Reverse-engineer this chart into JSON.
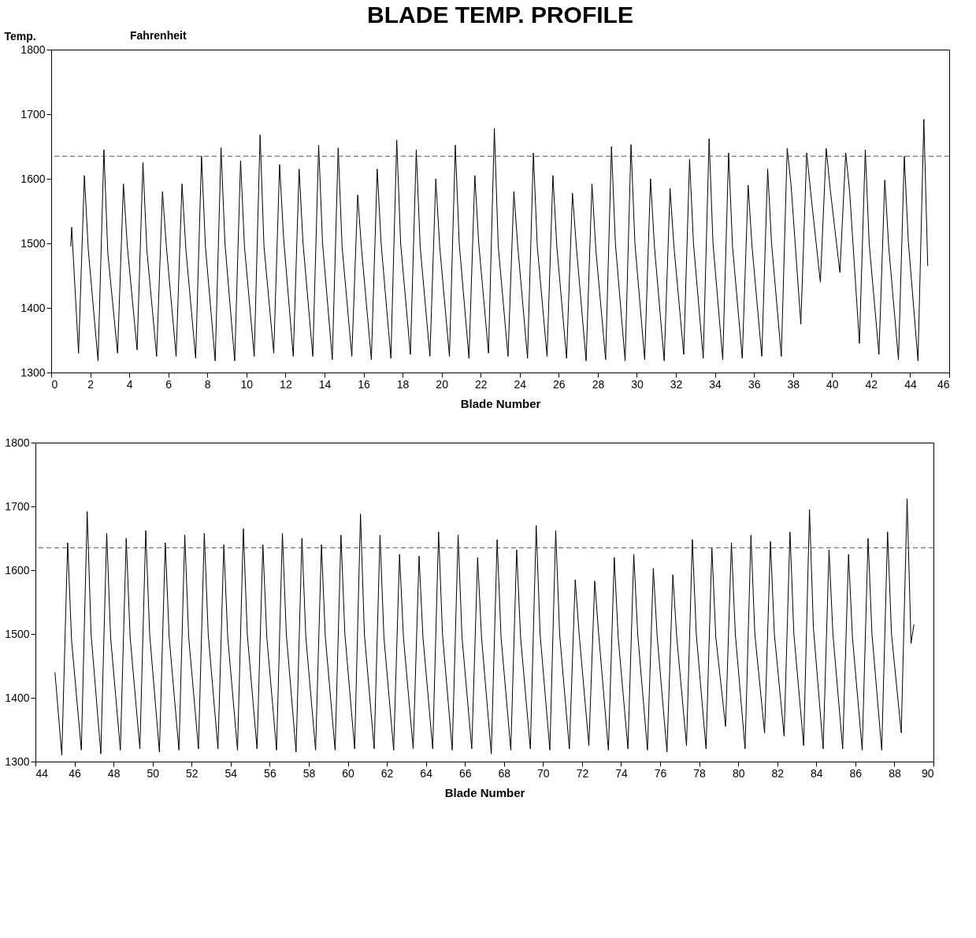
{
  "chart_data": [
    {
      "type": "line",
      "title": "BLADE TEMP. PROFILE",
      "ylabel": "Temp.",
      "xlabel": "Blade Number",
      "annotations": [
        "Fahrenheit"
      ],
      "x": [
        1,
        1.05,
        1.4,
        1.7,
        1.9,
        2.4,
        2.7,
        2.9,
        3.4,
        3.7,
        3.9,
        4.4,
        4.7,
        4.9,
        5.4,
        5.7,
        5.9,
        6.4,
        6.7,
        6.9,
        7.4,
        7.7,
        7.9,
        8.4,
        8.7,
        8.9,
        9.4,
        9.7,
        9.9,
        10.4,
        10.7,
        10.9,
        11.4,
        11.7,
        11.9,
        12.4,
        12.7,
        12.9,
        13.4,
        13.7,
        13.9,
        14.4,
        14.7,
        14.9,
        15.4,
        15.7,
        15.9,
        16.4,
        16.7,
        16.9,
        17.4,
        17.7,
        17.9,
        18.4,
        18.7,
        18.9,
        19.4,
        19.7,
        19.9,
        20.4,
        20.7,
        20.9,
        21.4,
        21.7,
        21.9,
        22.4,
        22.7,
        22.9,
        23.4,
        23.7,
        23.9,
        24.4,
        24.7,
        24.9,
        25.4,
        25.7,
        25.9,
        26.4,
        26.7,
        26.9,
        27.4,
        27.7,
        27.9,
        28.4,
        28.7,
        28.9,
        29.4,
        29.7,
        29.9,
        30.4,
        30.7,
        30.9,
        31.4,
        31.7,
        31.9,
        32.4,
        32.7,
        32.9,
        33.4,
        33.7,
        33.9,
        34.4,
        34.7,
        34.9,
        35.4,
        35.7,
        35.9,
        36.4,
        36.7,
        36.9,
        37.4,
        37.7,
        37.9,
        38.4,
        38.7,
        38.9,
        39.4,
        39.7,
        39.9,
        40.4,
        40.7,
        40.9,
        41.4,
        41.7,
        41.9,
        42.4,
        42.7,
        42.9,
        43.4,
        43.7,
        43.9,
        44.4,
        44.7,
        44.9
      ],
      "series": [
        {
          "color": "#000000",
          "values": [
            1495,
            1525,
            1330,
            1605,
            1490,
            1318,
            1645,
            1485,
            1330,
            1592,
            1495,
            1335,
            1625,
            1490,
            1325,
            1580,
            1495,
            1325,
            1592,
            1490,
            1322,
            1635,
            1495,
            1318,
            1648,
            1500,
            1318,
            1628,
            1495,
            1325,
            1668,
            1495,
            1330,
            1622,
            1510,
            1325,
            1615,
            1500,
            1325,
            1652,
            1500,
            1320,
            1648,
            1495,
            1325,
            1575,
            1490,
            1320,
            1615,
            1500,
            1322,
            1660,
            1500,
            1328,
            1645,
            1495,
            1325,
            1600,
            1495,
            1325,
            1652,
            1500,
            1322,
            1605,
            1500,
            1330,
            1678,
            1495,
            1325,
            1580,
            1495,
            1322,
            1640,
            1495,
            1325,
            1605,
            1495,
            1322,
            1578,
            1495,
            1318,
            1592,
            1490,
            1320,
            1650,
            1500,
            1318,
            1653,
            1500,
            1320,
            1600,
            1495,
            1318,
            1585,
            1495,
            1328,
            1630,
            1500,
            1322,
            1662,
            1500,
            1320,
            1640,
            1495,
            1322,
            1590,
            1495,
            1325,
            1615,
            1500,
            1325,
            1647,
            1590,
            1375,
            1640,
            1580,
            1440,
            1647,
            1585,
            1455,
            1640,
            1580,
            1345,
            1645,
            1500,
            1328,
            1598,
            1495,
            1320,
            1635,
            1505,
            1318,
            1692,
            1465
          ]
        }
      ],
      "xlim": [
        0,
        46
      ],
      "xticks": [
        0,
        2,
        4,
        6,
        8,
        10,
        12,
        14,
        16,
        18,
        20,
        22,
        24,
        26,
        28,
        30,
        32,
        34,
        36,
        38,
        40,
        42,
        44,
        46
      ],
      "ylim": [
        1300,
        1800
      ],
      "yticks": [
        1300,
        1400,
        1500,
        1600,
        1700,
        1800
      ],
      "ref_lines": [
        {
          "axis": "y",
          "value": 1635,
          "color": "#555555",
          "line_style": "dashed"
        }
      ]
    },
    {
      "type": "line",
      "xlabel": "Blade Number",
      "x": [
        45,
        45.35,
        45.65,
        45.85,
        46.35,
        46.65,
        46.85,
        47.35,
        47.65,
        47.85,
        48.35,
        48.65,
        48.85,
        49.35,
        49.65,
        49.85,
        50.35,
        50.65,
        50.85,
        51.35,
        51.65,
        51.85,
        52.35,
        52.65,
        52.85,
        53.35,
        53.65,
        53.85,
        54.35,
        54.65,
        54.85,
        55.35,
        55.65,
        55.85,
        56.35,
        56.65,
        56.85,
        57.35,
        57.65,
        57.85,
        58.35,
        58.65,
        58.85,
        59.35,
        59.65,
        59.85,
        60.35,
        60.65,
        60.85,
        61.35,
        61.65,
        61.85,
        62.35,
        62.65,
        62.85,
        63.35,
        63.65,
        63.85,
        64.35,
        64.65,
        64.85,
        65.35,
        65.65,
        65.85,
        66.35,
        66.65,
        66.85,
        67.35,
        67.65,
        67.85,
        68.35,
        68.65,
        68.85,
        69.35,
        69.65,
        69.85,
        70.35,
        70.65,
        70.85,
        71.35,
        71.65,
        71.85,
        72.35,
        72.65,
        72.85,
        73.35,
        73.65,
        73.85,
        74.35,
        74.65,
        74.85,
        75.35,
        75.65,
        75.85,
        76.35,
        76.65,
        76.85,
        77.35,
        77.65,
        77.85,
        78.35,
        78.65,
        78.85,
        79.35,
        79.65,
        79.85,
        80.35,
        80.65,
        80.85,
        81.35,
        81.65,
        81.85,
        82.35,
        82.65,
        82.85,
        83.35,
        83.65,
        83.85,
        84.35,
        84.65,
        84.85,
        85.35,
        85.65,
        85.85,
        86.35,
        86.65,
        86.85,
        87.35,
        87.65,
        87.85,
        88.35,
        88.65,
        88.85,
        89
      ],
      "series": [
        {
          "color": "#000000",
          "values": [
            1440,
            1310,
            1643,
            1490,
            1318,
            1692,
            1500,
            1312,
            1658,
            1495,
            1318,
            1650,
            1495,
            1320,
            1662,
            1500,
            1315,
            1643,
            1495,
            1318,
            1655,
            1495,
            1320,
            1658,
            1500,
            1320,
            1640,
            1495,
            1318,
            1665,
            1500,
            1320,
            1640,
            1495,
            1318,
            1658,
            1500,
            1315,
            1650,
            1495,
            1318,
            1640,
            1495,
            1318,
            1655,
            1500,
            1320,
            1688,
            1500,
            1320,
            1655,
            1495,
            1318,
            1625,
            1495,
            1320,
            1622,
            1495,
            1320,
            1660,
            1500,
            1318,
            1655,
            1495,
            1320,
            1620,
            1495,
            1312,
            1648,
            1495,
            1318,
            1632,
            1495,
            1320,
            1670,
            1500,
            1318,
            1662,
            1500,
            1320,
            1585,
            1500,
            1325,
            1583,
            1500,
            1318,
            1620,
            1495,
            1320,
            1625,
            1500,
            1318,
            1603,
            1495,
            1315,
            1593,
            1495,
            1325,
            1648,
            1500,
            1320,
            1635,
            1495,
            1355,
            1643,
            1500,
            1320,
            1655,
            1500,
            1345,
            1645,
            1500,
            1340,
            1660,
            1500,
            1325,
            1695,
            1510,
            1320,
            1632,
            1500,
            1320,
            1625,
            1495,
            1318,
            1650,
            1500,
            1318,
            1660,
            1500,
            1345,
            1712,
            1485,
            1515
          ]
        }
      ],
      "xlim": [
        44,
        90
      ],
      "xticks": [
        44,
        46,
        48,
        50,
        52,
        54,
        56,
        58,
        60,
        62,
        64,
        66,
        68,
        70,
        72,
        74,
        76,
        78,
        80,
        82,
        84,
        86,
        88,
        90
      ],
      "ylim": [
        1300,
        1800
      ],
      "yticks": [
        1300,
        1400,
        1500,
        1600,
        1700,
        1800
      ],
      "ref_lines": [
        {
          "axis": "y",
          "value": 1635,
          "color": "#555555",
          "line_style": "dashed"
        }
      ]
    }
  ]
}
